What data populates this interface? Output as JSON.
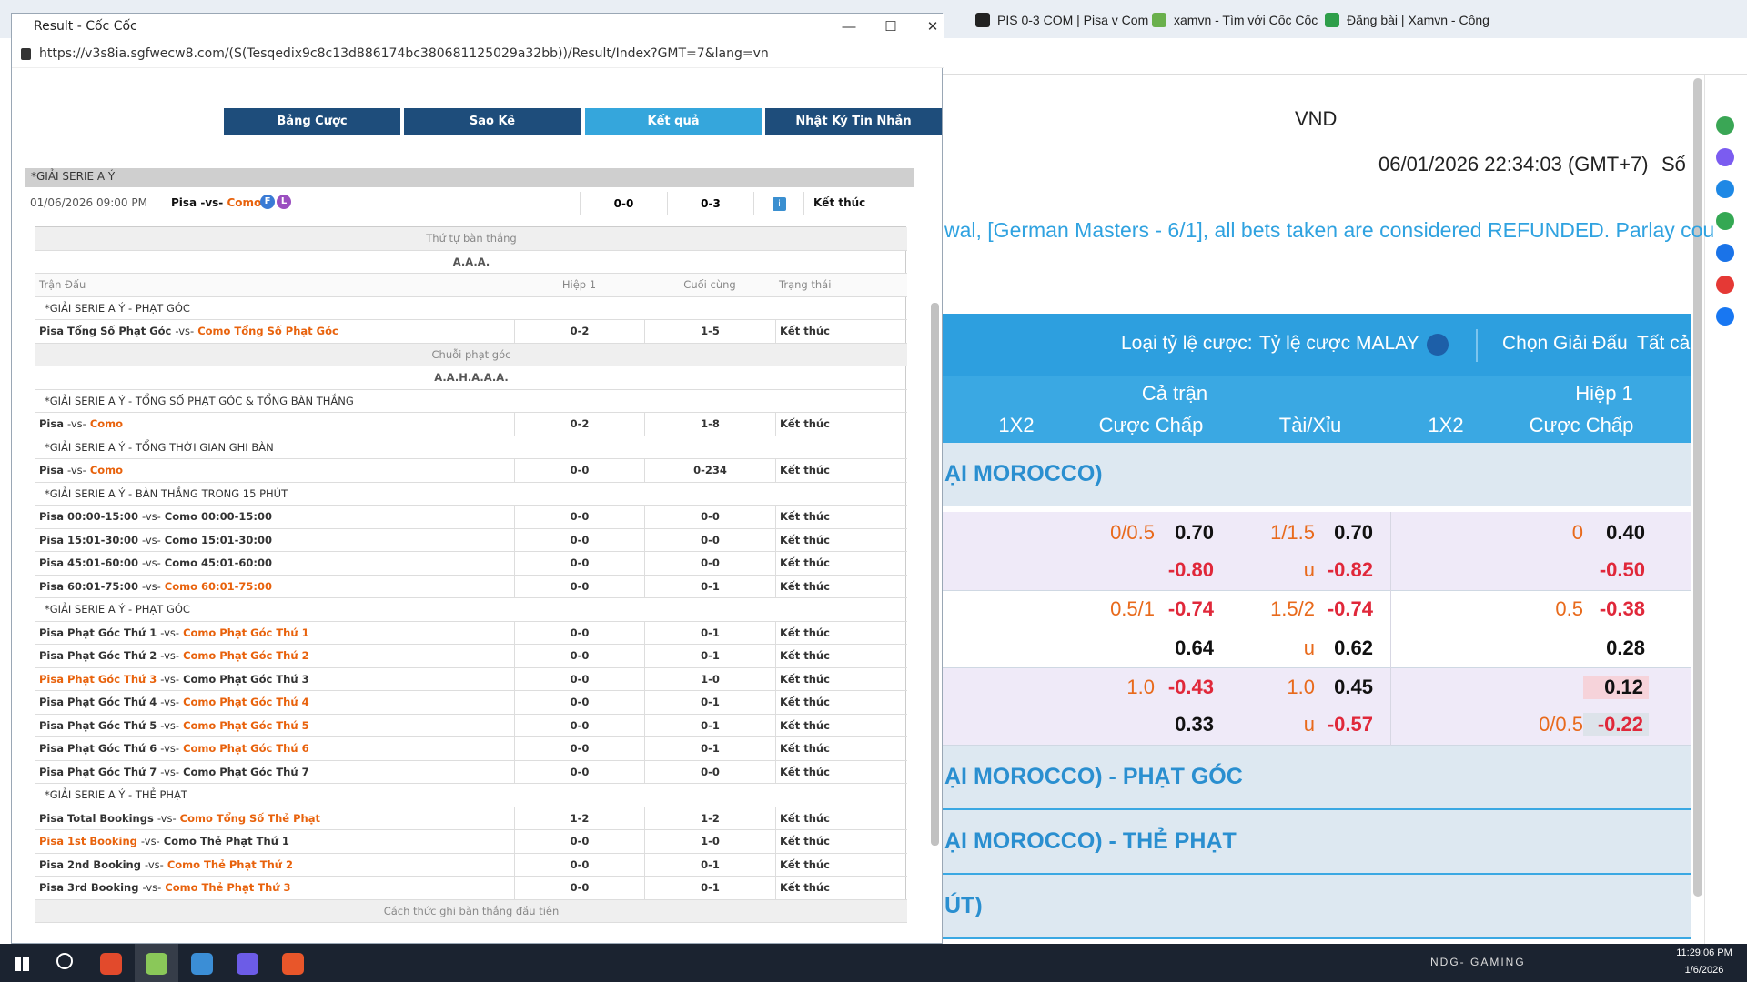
{
  "browser": {
    "tabs": [
      "PIS 0-3 COM | Pisa v Com",
      "xamvn - Tìm với Cốc Cốc",
      "Đăng bài | Xamvn - Công"
    ]
  },
  "site": {
    "currency": "VND",
    "datetime": "06/01/2026 22:34:03 (GMT+7)",
    "so": "Số",
    "marquee": "wal, [German Masters - 6/1], all bets taken are considered REFUNDED. Parlay cou",
    "odds_type_label": "Loại tỷ lệ cược:",
    "odds_type": "Tỷ lệ cược MALAY",
    "league_pick_label": "Chọn Giải Đấu",
    "league_pick": "Tất cả",
    "headers": {
      "full": "Cả trận",
      "half": "Hiệp 1",
      "cols": [
        "1X2",
        "Cược Chấp",
        "Tài/Xỉu",
        "1X2",
        "Cược Chấp"
      ]
    },
    "league": "ẠI MOROCCO)",
    "odds_rows": [
      {
        "hdp": "0/0.5",
        "hdp_odds": "0.70",
        "ou": "1/1.5",
        "ou_odds": "0.70",
        "h1": "0",
        "h1_odds": "0.40"
      },
      {
        "hdp_odds": "-0.80",
        "ou": "u",
        "ou_odds": "-0.82",
        "h1_odds": "-0.50"
      },
      {
        "hdp": "0.5/1",
        "hdp_odds": "-0.74",
        "ou": "1.5/2",
        "ou_odds": "-0.74",
        "h1": "0.5",
        "h1_odds": "-0.38"
      },
      {
        "hdp_odds": "0.64",
        "ou": "u",
        "ou_odds": "0.62",
        "h1_odds": "0.28"
      },
      {
        "hdp": "1.0",
        "hdp_odds": "-0.43",
        "ou": "1.0",
        "ou_odds": "0.45",
        "h1_odds": "0.12"
      },
      {
        "hdp_odds": "0.33",
        "ou": "u",
        "ou_odds": "-0.57",
        "h1": "0/0.5",
        "h1_odds": "-0.22"
      }
    ],
    "sections": [
      "ẠI MOROCCO) - PHẠT GÓC",
      "ẠI MOROCCO) - THẺ PHẠT",
      "ÚT)"
    ]
  },
  "popup": {
    "title": "Result - Cốc Cốc",
    "url": "https://v3s8ia.sgfwecw8.com/(S(Tesqedix9c8c13d886174bc380681125029a32bb))/Result/Index?GMT=7&lang=vn",
    "tabs": [
      "Bảng Cược",
      "Sao Kê",
      "Kết quả",
      "Nhật Ký Tin Nhắn"
    ],
    "active_tab": 2,
    "league": "*GIẢI SERIE A Ý",
    "match": {
      "time": "01/06/2026 09:00 PM",
      "home": "Pisa",
      "vs": "-vs-",
      "away": "Como",
      "badges": [
        "F",
        "L"
      ],
      "h1": "0-0",
      "final": "0-3",
      "info": "i",
      "status": "Kết thúc"
    },
    "detail_rows": [
      {
        "kind": "section",
        "text": "Thứ tự bàn thắng"
      },
      {
        "kind": "code",
        "text": "A.A.A."
      },
      {
        "kind": "head",
        "cols": [
          "Trận Đấu",
          "Hiệp 1",
          "Cuối cùng",
          "Trạng thái"
        ]
      },
      {
        "kind": "league",
        "text": "*GIẢI SERIE A Ý - PHẠT GÓC"
      },
      {
        "kind": "match",
        "home": "Pisa Tổng Số Phạt Góc",
        "away": "Como Tổng Số Phạt Góc",
        "h1": "0-2",
        "final": "1-5",
        "status": "Kết thúc",
        "winner": "away"
      },
      {
        "kind": "section",
        "text": "Chuỗi phạt góc"
      },
      {
        "kind": "code",
        "text": "A.A.H.A.A.A."
      },
      {
        "kind": "league",
        "text": "*GIẢI SERIE A Ý - TỔNG SỐ PHẠT GÓC & TỔNG BÀN THẮNG"
      },
      {
        "kind": "match",
        "home": "Pisa",
        "away": "Como",
        "h1": "0-2",
        "final": "1-8",
        "status": "Kết thúc",
        "winner": "away"
      },
      {
        "kind": "league",
        "text": "*GIẢI SERIE A Ý - TỔNG THỜI GIAN GHI BÀN"
      },
      {
        "kind": "match",
        "home": "Pisa",
        "away": "Como",
        "h1": "0-0",
        "final": "0-234",
        "status": "Kết thúc",
        "winner": "away"
      },
      {
        "kind": "league",
        "text": "*GIẢI SERIE A Ý - BÀN THẮNG TRONG 15 PHÚT"
      },
      {
        "kind": "match",
        "home": "Pisa 00:00-15:00",
        "away": "Como 00:00-15:00",
        "h1": "0-0",
        "final": "0-0",
        "status": "Kết thúc",
        "winner": "none"
      },
      {
        "kind": "match",
        "home": "Pisa 15:01-30:00",
        "away": "Como 15:01-30:00",
        "h1": "0-0",
        "final": "0-0",
        "status": "Kết thúc",
        "winner": "none"
      },
      {
        "kind": "match",
        "home": "Pisa 45:01-60:00",
        "away": "Como 45:01-60:00",
        "h1": "0-0",
        "final": "0-0",
        "status": "Kết thúc",
        "winner": "none"
      },
      {
        "kind": "match",
        "home": "Pisa 60:01-75:00",
        "away": "Como 60:01-75:00",
        "h1": "0-0",
        "final": "0-1",
        "status": "Kết thúc",
        "winner": "away"
      },
      {
        "kind": "league",
        "text": "*GIẢI SERIE A Ý - PHẠT GÓC"
      },
      {
        "kind": "match",
        "home": "Pisa Phạt Góc Thứ 1",
        "away": "Como Phạt Góc Thứ 1",
        "h1": "0-0",
        "final": "0-1",
        "status": "Kết thúc",
        "winner": "away"
      },
      {
        "kind": "match",
        "home": "Pisa Phạt Góc Thứ 2",
        "away": "Como Phạt Góc Thứ 2",
        "h1": "0-0",
        "final": "0-1",
        "status": "Kết thúc",
        "winner": "away"
      },
      {
        "kind": "match",
        "home": "Pisa Phạt Góc Thứ 3",
        "away": "Como Phạt Góc Thứ 3",
        "h1": "0-0",
        "final": "1-0",
        "status": "Kết thúc",
        "winner": "home"
      },
      {
        "kind": "match",
        "home": "Pisa Phạt Góc Thứ 4",
        "away": "Como Phạt Góc Thứ 4",
        "h1": "0-0",
        "final": "0-1",
        "status": "Kết thúc",
        "winner": "away"
      },
      {
        "kind": "match",
        "home": "Pisa Phạt Góc Thứ 5",
        "away": "Como Phạt Góc Thứ 5",
        "h1": "0-0",
        "final": "0-1",
        "status": "Kết thúc",
        "winner": "away"
      },
      {
        "kind": "match",
        "home": "Pisa Phạt Góc Thứ 6",
        "away": "Como Phạt Góc Thứ 6",
        "h1": "0-0",
        "final": "0-1",
        "status": "Kết thúc",
        "winner": "away"
      },
      {
        "kind": "match",
        "home": "Pisa Phạt Góc Thứ 7",
        "away": "Como Phạt Góc Thứ 7",
        "h1": "0-0",
        "final": "0-0",
        "status": "Kết thúc",
        "winner": "none"
      },
      {
        "kind": "league",
        "text": "*GIẢI SERIE A Ý - THẺ PHẠT"
      },
      {
        "kind": "match",
        "home": "Pisa Total Bookings",
        "away": "Como Tổng Số Thẻ Phạt",
        "h1": "1-2",
        "final": "1-2",
        "status": "Kết thúc",
        "winner": "away"
      },
      {
        "kind": "match",
        "home": "Pisa 1st Booking",
        "away": "Como Thẻ Phạt Thứ 1",
        "h1": "0-0",
        "final": "1-0",
        "status": "Kết thúc",
        "winner": "home"
      },
      {
        "kind": "match",
        "home": "Pisa 2nd Booking",
        "away": "Como Thẻ Phạt Thứ 2",
        "h1": "0-0",
        "final": "0-1",
        "status": "Kết thúc",
        "winner": "away"
      },
      {
        "kind": "match",
        "home": "Pisa 3rd Booking",
        "away": "Como Thẻ Phạt Thứ 3",
        "h1": "0-0",
        "final": "0-1",
        "status": "Kết thúc",
        "winner": "away"
      },
      {
        "kind": "section",
        "text": "Cách thức ghi bàn thắng đầu tiên"
      }
    ]
  },
  "taskbar": {
    "label": "NDG- GAMING",
    "time": "11:29:06 PM",
    "date": "1/6/2026"
  }
}
